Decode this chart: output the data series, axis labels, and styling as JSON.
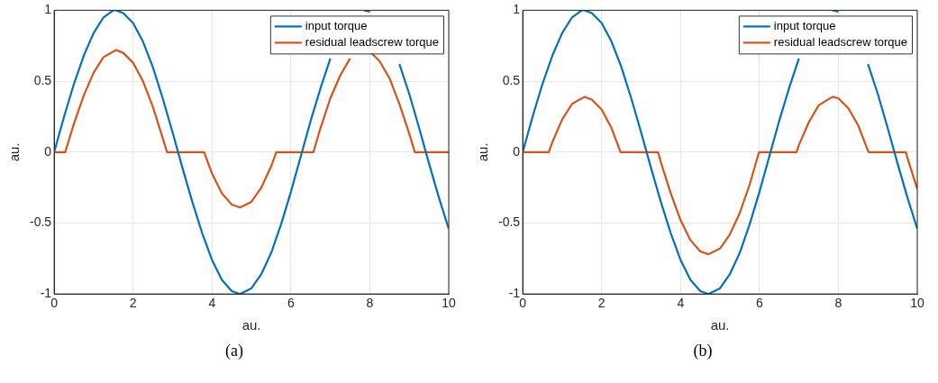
{
  "chart_data": [
    {
      "type": "line",
      "xlabel": "au.",
      "ylabel": "au.",
      "annotations": [
        "(a)"
      ],
      "xlim": [
        0,
        10
      ],
      "xticks": [
        0,
        2,
        4,
        6,
        8,
        10
      ],
      "ylim": [
        -1,
        1
      ],
      "yticks": [
        -1,
        -0.5,
        0,
        0.5,
        1
      ],
      "grid": true,
      "legend": "top right",
      "series": [
        {
          "name": "input torque",
          "color": "#0072bd",
          "x": [
            0,
            0.25,
            0.5,
            0.75,
            1,
            1.25,
            1.5,
            1.57,
            1.75,
            2,
            2.25,
            2.5,
            2.75,
            3,
            3.25,
            3.5,
            3.75,
            4,
            4.25,
            4.5,
            4.71,
            5,
            5.25,
            5.5,
            5.75,
            6,
            6.25,
            6.5,
            6.75,
            7,
            7.25,
            7.5,
            7.85,
            8,
            8.25,
            8.5,
            8.75,
            9,
            9.25,
            9.5,
            9.75,
            10
          ],
          "values": [
            0,
            0.25,
            0.48,
            0.68,
            0.84,
            0.95,
            1,
            1,
            0.98,
            0.91,
            0.78,
            0.6,
            0.38,
            0.14,
            -0.11,
            -0.35,
            -0.57,
            -0.76,
            -0.9,
            -0.98,
            -1,
            -0.96,
            -0.86,
            -0.71,
            -0.51,
            -0.28,
            -0.03,
            0.22,
            0.45,
            0.66,
            null,
            null,
            1,
            0.99,
            null,
            null,
            0.62,
            0.41,
            0.17,
            -0.08,
            -0.32,
            -0.54
          ]
        },
        {
          "name": "residual leadscrew torque",
          "color": "#d95319",
          "x": [
            0,
            0.28,
            0.5,
            0.75,
            1,
            1.25,
            1.57,
            1.75,
            2,
            2.25,
            2.5,
            2.75,
            2.86,
            3.8,
            4,
            4.25,
            4.5,
            4.71,
            5,
            5.25,
            5.5,
            5.63,
            6.57,
            6.75,
            7,
            7.25,
            7.5,
            7.85,
            8,
            8.25,
            8.5,
            8.75,
            9,
            9.14,
            10
          ],
          "values": [
            0,
            0,
            0.2,
            0.4,
            0.56,
            0.67,
            0.72,
            0.7,
            0.63,
            0.5,
            0.32,
            0.1,
            0,
            0,
            -0.15,
            -0.29,
            -0.37,
            -0.39,
            -0.35,
            -0.25,
            -0.1,
            0,
            0,
            0.17,
            0.38,
            0.54,
            0.66,
            null,
            0.71,
            0.64,
            0.52,
            0.34,
            0.13,
            0,
            0
          ]
        }
      ]
    },
    {
      "type": "line",
      "xlabel": "au.",
      "ylabel": "au.",
      "annotations": [
        "(b)"
      ],
      "xlim": [
        0,
        10
      ],
      "xticks": [
        0,
        2,
        4,
        6,
        8,
        10
      ],
      "ylim": [
        -1,
        1
      ],
      "yticks": [
        -1,
        -0.5,
        0,
        0.5,
        1
      ],
      "grid": true,
      "legend": "top right",
      "series": [
        {
          "name": "input torque",
          "color": "#0072bd",
          "x": [
            0,
            0.25,
            0.5,
            0.75,
            1,
            1.25,
            1.5,
            1.57,
            1.75,
            2,
            2.25,
            2.5,
            2.75,
            3,
            3.25,
            3.5,
            3.75,
            4,
            4.25,
            4.5,
            4.71,
            5,
            5.25,
            5.5,
            5.75,
            6,
            6.25,
            6.5,
            6.75,
            7,
            7.25,
            7.5,
            7.85,
            8,
            8.25,
            8.5,
            8.75,
            9,
            9.25,
            9.5,
            9.75,
            10
          ],
          "values": [
            0,
            0.25,
            0.48,
            0.68,
            0.84,
            0.95,
            1,
            1,
            0.98,
            0.91,
            0.78,
            0.6,
            0.38,
            0.14,
            -0.11,
            -0.35,
            -0.57,
            -0.76,
            -0.9,
            -0.98,
            -1,
            -0.96,
            -0.86,
            -0.71,
            -0.51,
            -0.28,
            -0.03,
            0.22,
            0.45,
            0.66,
            null,
            null,
            1,
            0.99,
            null,
            null,
            0.62,
            0.41,
            0.17,
            -0.08,
            -0.32,
            -0.54
          ]
        },
        {
          "name": "residual leadscrew torque",
          "color": "#d95319",
          "x": [
            0,
            0.66,
            0.75,
            1,
            1.25,
            1.57,
            1.75,
            2,
            2.25,
            2.48,
            3.43,
            3.5,
            3.75,
            4,
            4.25,
            4.5,
            4.71,
            5,
            5.25,
            5.5,
            5.75,
            5.99,
            6.94,
            7,
            7.25,
            7.5,
            7.85,
            8,
            8.25,
            8.5,
            8.75,
            8.77,
            9.71,
            9.75,
            10
          ],
          "values": [
            0,
            0,
            0.07,
            0.23,
            0.34,
            0.39,
            0.37,
            0.3,
            0.17,
            0,
            0,
            -0.07,
            -0.29,
            -0.48,
            -0.62,
            -0.7,
            -0.72,
            -0.68,
            -0.58,
            -0.43,
            -0.23,
            0,
            0,
            0.05,
            0.21,
            0.33,
            0.39,
            0.38,
            0.31,
            0.19,
            0.01,
            0,
            0,
            -0.04,
            -0.26
          ]
        }
      ]
    }
  ]
}
